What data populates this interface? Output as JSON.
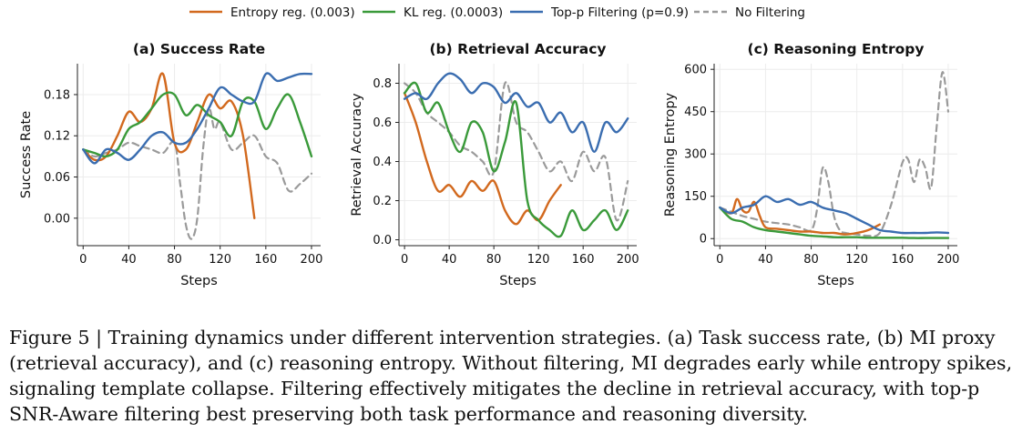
{
  "legend": [
    {
      "label": "Entropy reg. (0.003)",
      "color": "#d2691e",
      "dash": false
    },
    {
      "label": "KL reg. (0.0003)",
      "color": "#3a9a3a",
      "dash": false
    },
    {
      "label": "Top-p Filtering (p=0.9)",
      "color": "#3a6db0",
      "dash": false
    },
    {
      "label": "No Filtering",
      "color": "#9a9a9a",
      "dash": true
    }
  ],
  "chart_data": [
    {
      "type": "line",
      "title": "(a) Success Rate",
      "xlabel": "Steps",
      "ylabel": "Success Rate",
      "xlim": [
        -5,
        208
      ],
      "ylim": [
        -0.04,
        0.225
      ],
      "xticks": [
        0,
        40,
        80,
        120,
        160,
        200
      ],
      "yticks": [
        0.0,
        0.06,
        0.12,
        0.18
      ],
      "ytick_labels": [
        "0.00",
        "0.06",
        "0.12",
        "0.18"
      ],
      "grid": true,
      "series": [
        {
          "name": "No Filtering",
          "color": "#9a9a9a",
          "dash": true,
          "x": [
            0,
            10,
            20,
            30,
            40,
            50,
            60,
            70,
            80,
            85,
            90,
            95,
            100,
            105,
            110,
            115,
            120,
            130,
            140,
            150,
            160,
            170,
            180,
            190,
            200
          ],
          "y": [
            0.1,
            0.09,
            0.095,
            0.1,
            0.11,
            0.105,
            0.1,
            0.095,
            0.11,
            0.05,
            -0.01,
            -0.03,
            0.0,
            0.1,
            0.16,
            0.13,
            0.14,
            0.1,
            0.11,
            0.12,
            0.09,
            0.08,
            0.04,
            0.05,
            0.065
          ]
        },
        {
          "name": "Entropy reg. (0.003)",
          "color": "#d2691e",
          "dash": false,
          "x": [
            0,
            10,
            20,
            30,
            40,
            50,
            60,
            70,
            80,
            90,
            100,
            110,
            120,
            130,
            140,
            150
          ],
          "y": [
            0.1,
            0.085,
            0.09,
            0.12,
            0.155,
            0.14,
            0.16,
            0.21,
            0.11,
            0.1,
            0.14,
            0.18,
            0.16,
            0.17,
            0.12,
            0.0
          ]
        },
        {
          "name": "KL reg. (0.0003)",
          "color": "#3a9a3a",
          "dash": false,
          "x": [
            0,
            10,
            20,
            30,
            40,
            50,
            60,
            70,
            80,
            90,
            100,
            110,
            120,
            130,
            140,
            150,
            160,
            170,
            180,
            190,
            200
          ],
          "y": [
            0.1,
            0.095,
            0.09,
            0.1,
            0.13,
            0.14,
            0.16,
            0.18,
            0.18,
            0.15,
            0.165,
            0.15,
            0.14,
            0.12,
            0.17,
            0.17,
            0.13,
            0.16,
            0.18,
            0.14,
            0.09
          ]
        },
        {
          "name": "Top-p Filtering (p=0.9)",
          "color": "#3a6db0",
          "dash": false,
          "x": [
            0,
            10,
            20,
            30,
            40,
            50,
            60,
            70,
            80,
            90,
            100,
            110,
            120,
            130,
            140,
            150,
            160,
            170,
            180,
            190,
            200
          ],
          "y": [
            0.1,
            0.08,
            0.1,
            0.095,
            0.085,
            0.1,
            0.12,
            0.125,
            0.11,
            0.11,
            0.13,
            0.16,
            0.19,
            0.18,
            0.17,
            0.17,
            0.21,
            0.2,
            0.205,
            0.21,
            0.21
          ]
        }
      ]
    },
    {
      "type": "line",
      "title": "(b) Retrieval Accuracy",
      "xlabel": "Steps",
      "ylabel": "Retrieval Accuracy",
      "xlim": [
        -5,
        208
      ],
      "ylim": [
        -0.03,
        0.9
      ],
      "xticks": [
        0,
        40,
        80,
        120,
        160,
        200
      ],
      "yticks": [
        0.0,
        0.2,
        0.4,
        0.6,
        0.8
      ],
      "ytick_labels": [
        "0.0",
        "0.2",
        "0.4",
        "0.6",
        "0.8"
      ],
      "grid": true,
      "series": [
        {
          "name": "No Filtering",
          "color": "#9a9a9a",
          "dash": true,
          "x": [
            0,
            10,
            20,
            30,
            40,
            50,
            60,
            70,
            80,
            90,
            100,
            110,
            120,
            130,
            140,
            150,
            160,
            170,
            180,
            190,
            200
          ],
          "y": [
            0.8,
            0.75,
            0.65,
            0.6,
            0.55,
            0.48,
            0.45,
            0.4,
            0.35,
            0.8,
            0.6,
            0.55,
            0.45,
            0.35,
            0.4,
            0.3,
            0.45,
            0.35,
            0.42,
            0.1,
            0.3
          ]
        },
        {
          "name": "Entropy reg. (0.003)",
          "color": "#d2691e",
          "dash": false,
          "x": [
            0,
            10,
            20,
            30,
            40,
            50,
            60,
            70,
            80,
            90,
            100,
            110,
            120,
            130,
            140
          ],
          "y": [
            0.75,
            0.6,
            0.4,
            0.25,
            0.28,
            0.22,
            0.3,
            0.25,
            0.3,
            0.15,
            0.08,
            0.15,
            0.1,
            0.2,
            0.28
          ]
        },
        {
          "name": "KL reg. (0.0003)",
          "color": "#3a9a3a",
          "dash": false,
          "x": [
            0,
            10,
            20,
            30,
            40,
            50,
            60,
            70,
            80,
            90,
            100,
            110,
            120,
            130,
            140,
            150,
            160,
            170,
            180,
            190,
            200
          ],
          "y": [
            0.75,
            0.8,
            0.65,
            0.7,
            0.55,
            0.45,
            0.6,
            0.55,
            0.35,
            0.5,
            0.7,
            0.2,
            0.1,
            0.05,
            0.02,
            0.15,
            0.05,
            0.1,
            0.15,
            0.05,
            0.15
          ]
        },
        {
          "name": "Top-p Filtering (p=0.9)",
          "color": "#3a6db0",
          "dash": false,
          "x": [
            0,
            10,
            20,
            30,
            40,
            50,
            60,
            70,
            80,
            90,
            100,
            110,
            120,
            130,
            140,
            150,
            160,
            170,
            180,
            190,
            200
          ],
          "y": [
            0.72,
            0.75,
            0.72,
            0.8,
            0.85,
            0.82,
            0.75,
            0.8,
            0.78,
            0.7,
            0.75,
            0.68,
            0.7,
            0.6,
            0.65,
            0.55,
            0.6,
            0.45,
            0.6,
            0.55,
            0.62
          ]
        }
      ]
    },
    {
      "type": "line",
      "title": "(c) Reasoning Entropy",
      "xlabel": "Steps",
      "ylabel": "Reasoning Entropy",
      "xlim": [
        -5,
        208
      ],
      "ylim": [
        -25,
        620
      ],
      "xticks": [
        0,
        40,
        80,
        120,
        160,
        200
      ],
      "yticks": [
        0,
        150,
        300,
        450,
        600
      ],
      "ytick_labels": [
        "0",
        "150",
        "300",
        "450",
        "600"
      ],
      "grid": true,
      "series": [
        {
          "name": "No Filtering",
          "color": "#9a9a9a",
          "dash": true,
          "x": [
            0,
            10,
            20,
            30,
            40,
            50,
            60,
            70,
            80,
            85,
            90,
            95,
            100,
            105,
            110,
            120,
            130,
            140,
            150,
            160,
            165,
            170,
            175,
            180,
            185,
            190,
            195,
            200
          ],
          "y": [
            110,
            95,
            80,
            70,
            60,
            55,
            50,
            40,
            30,
            100,
            250,
            200,
            80,
            30,
            20,
            15,
            10,
            20,
            120,
            270,
            280,
            200,
            280,
            250,
            180,
            400,
            590,
            450
          ]
        },
        {
          "name": "Entropy reg. (0.003)",
          "color": "#d2691e",
          "dash": false,
          "x": [
            0,
            10,
            15,
            20,
            25,
            30,
            35,
            40,
            50,
            60,
            70,
            80,
            90,
            100,
            110,
            120,
            130,
            140
          ],
          "y": [
            110,
            90,
            140,
            100,
            95,
            130,
            80,
            40,
            35,
            30,
            25,
            25,
            20,
            20,
            15,
            20,
            30,
            50
          ]
        },
        {
          "name": "KL reg. (0.0003)",
          "color": "#3a9a3a",
          "dash": false,
          "x": [
            0,
            10,
            20,
            30,
            40,
            50,
            60,
            70,
            80,
            90,
            100,
            110,
            120,
            130,
            140,
            150,
            160,
            170,
            180,
            190,
            200
          ],
          "y": [
            110,
            70,
            60,
            40,
            30,
            25,
            20,
            15,
            10,
            8,
            5,
            5,
            5,
            3,
            3,
            3,
            3,
            2,
            2,
            2,
            2
          ]
        },
        {
          "name": "Top-p Filtering (p=0.9)",
          "color": "#3a6db0",
          "dash": false,
          "x": [
            0,
            10,
            20,
            30,
            40,
            50,
            60,
            70,
            80,
            90,
            100,
            110,
            120,
            130,
            140,
            150,
            160,
            170,
            180,
            190,
            200
          ],
          "y": [
            110,
            90,
            110,
            120,
            150,
            130,
            140,
            120,
            130,
            110,
            100,
            90,
            70,
            50,
            30,
            25,
            20,
            20,
            20,
            22,
            20
          ]
        }
      ]
    }
  ],
  "caption": [
    "Figure 5 | Training dynamics under different intervention strategies. (a) Task success rate, (b) MI proxy",
    "(retrieval accuracy), and (c) reasoning entropy. Without filtering, MI degrades early while entropy spikes,",
    "signaling template collapse. Filtering effectively mitigates the decline in retrieval accuracy, with top-p",
    "SNR-Aware filtering best preserving both task performance and reasoning diversity."
  ]
}
